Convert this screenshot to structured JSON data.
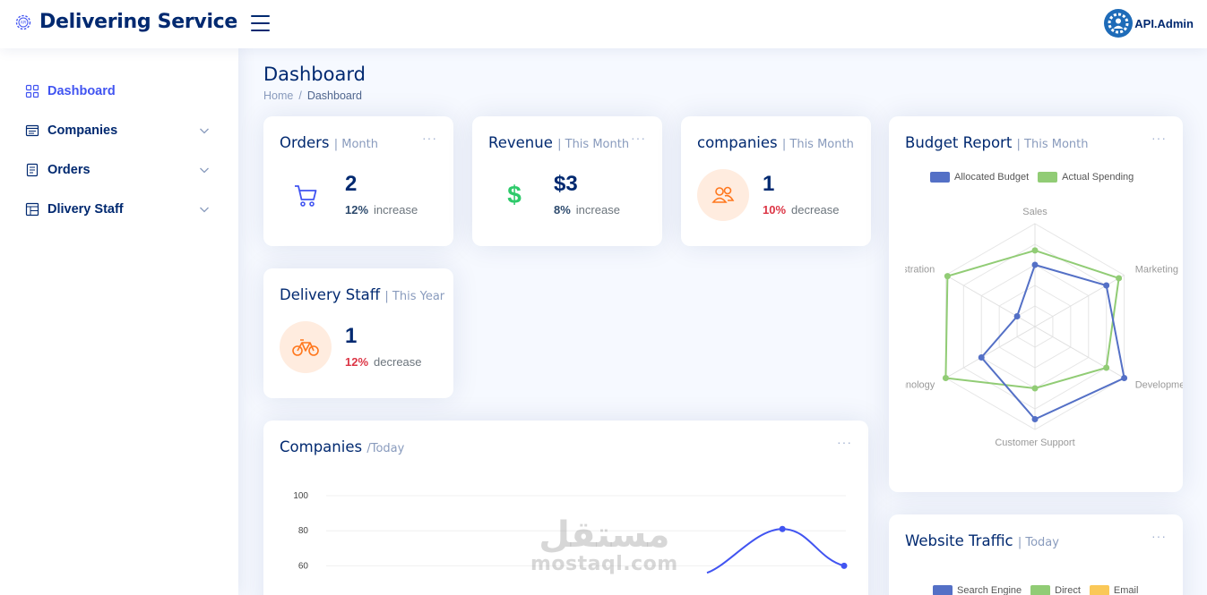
{
  "app": {
    "title": "Delivering Service",
    "user": "API.Admin",
    "logo_icon": "gear-api-icon",
    "avatar_icon": "gear-avatar-icon"
  },
  "sidebar": {
    "items": [
      {
        "label": "Dashboard",
        "icon": "grid-icon",
        "active": true,
        "has_children": false
      },
      {
        "label": "Companies",
        "icon": "building-icon",
        "has_children": true
      },
      {
        "label": "Orders",
        "icon": "document-icon",
        "has_children": true
      },
      {
        "label": "Dlivery Staff",
        "icon": "table-icon",
        "has_children": true
      }
    ]
  },
  "page": {
    "title": "Dashboard",
    "breadcrumb": [
      "Home",
      "/",
      "Dashboard"
    ]
  },
  "cards": {
    "orders": {
      "title": "Orders",
      "sub": "| Month",
      "value": "2",
      "pct": "12%",
      "trend": "increase",
      "icon": "cart-icon"
    },
    "revenue": {
      "title": "Revenue",
      "sub": "| This Month",
      "value": "$3",
      "pct": "8%",
      "trend": "increase",
      "icon": "dollar-icon"
    },
    "companies": {
      "title": "companies",
      "sub": "| This Month",
      "value": "1",
      "pct": "10%",
      "trend": "decrease",
      "icon": "people-icon"
    },
    "staff": {
      "title": "Delivery Staff",
      "sub": "| This Year",
      "value": "1",
      "pct": "12%",
      "trend": "decrease",
      "icon": "bicycle-icon"
    }
  },
  "dots": "···",
  "companies_chart": {
    "title": "Companies",
    "sub": "/Today"
  },
  "budget": {
    "title": "Budget Report",
    "sub": "| This Month",
    "legend": [
      "Allocated Budget",
      "Actual Spending"
    ]
  },
  "traffic": {
    "title": "Website Traffic",
    "sub": "| Today",
    "legend": [
      "Search Engine",
      "Direct",
      "Email"
    ]
  },
  "watermark": {
    "line1": "مستقل",
    "line2": "mostaql.com"
  },
  "colors": {
    "primary": "#4154f1",
    "navy": "#012970",
    "allocated": "#5470c6",
    "actual": "#91cc75",
    "email": "#fac858"
  },
  "chart_data": [
    {
      "type": "radar",
      "title": "Budget Report",
      "axes": [
        "Sales",
        "Marketing",
        "Development",
        "Customer Support",
        "Information Technology",
        "Administration"
      ],
      "max": 1,
      "series": [
        {
          "name": "Allocated Budget",
          "values": [
            0.6,
            0.8,
            1.0,
            0.9,
            0.6,
            0.2
          ]
        },
        {
          "name": "Actual Spending",
          "values": [
            0.74,
            0.94,
            0.8,
            0.6,
            1.0,
            0.98
          ]
        }
      ],
      "legend": "top"
    },
    {
      "type": "line",
      "title": "Companies",
      "y_ticks": [
        100,
        80,
        60
      ],
      "ylim": [
        0,
        100
      ],
      "series": [
        {
          "name": "",
          "points": [
            [
              0.0,
              56
            ],
            [
              0.55,
              81
            ],
            [
              1.0,
              60
            ]
          ]
        }
      ]
    },
    {
      "type": "pie",
      "title": "Website Traffic",
      "legend": [
        "Search Engine",
        "Direct",
        "Email"
      ]
    }
  ]
}
